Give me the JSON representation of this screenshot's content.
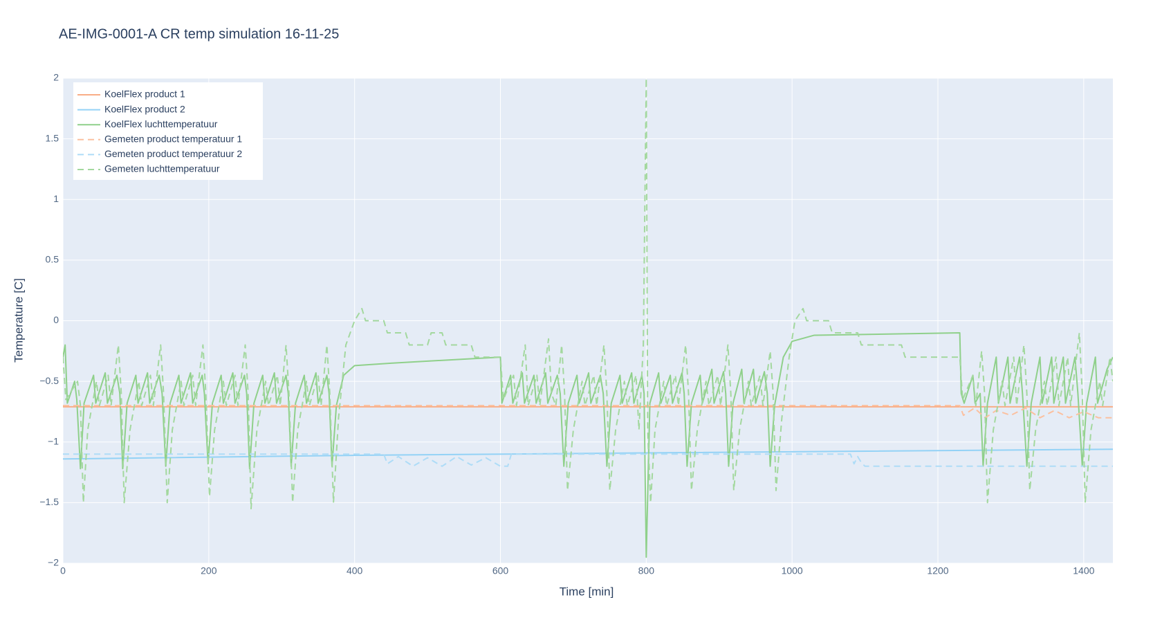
{
  "chart_data": {
    "type": "line",
    "title": "AE-IMG-0001-A CR temp simulation 16-11-25",
    "x_label": "Time [min]",
    "y_label": "Temperature [C]",
    "xlim": [
      0,
      1440
    ],
    "ylim": [
      -2,
      2
    ],
    "xticks": [
      0,
      200,
      400,
      600,
      800,
      1000,
      1200,
      1400
    ],
    "yticks": [
      {
        "value": -2,
        "label": "−2"
      },
      {
        "value": -1.5,
        "label": "−1.5"
      },
      {
        "value": -1,
        "label": "−1"
      },
      {
        "value": -0.5,
        "label": "−0.5"
      },
      0,
      0.5,
      1,
      1.5,
      2
    ],
    "grid": true,
    "legend": "top-left",
    "series": [
      {
        "name": "KoelFlex product 1",
        "color": "#f9ad86",
        "dash": "solid",
        "x": [
          0,
          400,
          800,
          1440
        ],
        "values": [
          -0.71,
          -0.71,
          -0.71,
          -0.71
        ]
      },
      {
        "name": "KoelFlex product 2",
        "color": "#93d2f6",
        "dash": "solid",
        "x": [
          0,
          400,
          800,
          1440
        ],
        "values": [
          -1.14,
          -1.11,
          -1.09,
          -1.06
        ]
      },
      {
        "name": "KoelFlex luchttemperatuur",
        "color": "#8fd08a",
        "dash": "solid",
        "x": [
          0,
          3,
          6,
          16,
          19,
          24,
          29,
          42,
          45,
          58,
          61,
          74,
          78,
          82,
          88,
          100,
          103,
          116,
          119,
          132,
          136,
          141,
          147,
          159,
          162,
          175,
          178,
          191,
          194,
          199,
          205,
          217,
          220,
          233,
          236,
          249,
          252,
          256,
          262,
          274,
          277,
          290,
          293,
          306,
          309,
          313,
          319,
          331,
          334,
          347,
          350,
          362,
          365,
          369,
          375,
          385,
          400,
          450,
          600,
          602,
          614,
          617,
          630,
          633,
          646,
          649,
          662,
          665,
          678,
          682,
          687,
          693,
          705,
          708,
          721,
          724,
          737,
          741,
          746,
          752,
          764,
          767,
          780,
          783,
          794,
          797,
          800,
          805,
          817,
          820,
          833,
          836,
          849,
          852,
          856,
          862,
          874,
          877,
          890,
          893,
          906,
          909,
          913,
          919,
          931,
          934,
          947,
          950,
          962,
          966,
          970,
          976,
          988,
          1000,
          1030,
          1230,
          1232,
          1236,
          1248,
          1251,
          1258,
          1262,
          1268,
          1280,
          1283,
          1296,
          1299,
          1312,
          1316,
          1322,
          1328,
          1340,
          1343,
          1356,
          1359,
          1372,
          1375,
          1388,
          1392,
          1398,
          1404,
          1416,
          1419,
          1432,
          1440
        ],
        "values": [
          -0.3,
          -0.2,
          -0.68,
          -0.5,
          -0.65,
          -1.22,
          -0.68,
          -0.45,
          -0.68,
          -0.43,
          -0.68,
          -0.45,
          -0.6,
          -1.22,
          -0.68,
          -0.45,
          -0.68,
          -0.43,
          -0.68,
          -0.45,
          -0.6,
          -1.2,
          -0.68,
          -0.45,
          -0.68,
          -0.43,
          -0.68,
          -0.45,
          -0.6,
          -1.18,
          -0.68,
          -0.45,
          -0.68,
          -0.43,
          -0.68,
          -0.45,
          -0.6,
          -1.22,
          -0.68,
          -0.45,
          -0.68,
          -0.43,
          -0.68,
          -0.45,
          -0.6,
          -1.2,
          -0.68,
          -0.45,
          -0.68,
          -0.43,
          -0.68,
          -0.45,
          -0.6,
          -1.2,
          -0.7,
          -0.45,
          -0.37,
          -0.35,
          -0.3,
          -0.68,
          -0.45,
          -0.68,
          -0.43,
          -0.68,
          -0.45,
          -0.68,
          -0.43,
          -0.68,
          -0.45,
          -0.6,
          -1.2,
          -0.68,
          -0.45,
          -0.68,
          -0.43,
          -0.68,
          -0.45,
          -0.6,
          -1.2,
          -0.68,
          -0.45,
          -0.68,
          -0.43,
          -0.68,
          -0.45,
          -0.6,
          -1.95,
          -0.68,
          -0.43,
          -0.68,
          -0.45,
          -0.68,
          -0.43,
          -0.6,
          -1.2,
          -0.68,
          -0.45,
          -0.68,
          -0.4,
          -0.68,
          -0.42,
          -0.6,
          -1.2,
          -0.68,
          -0.4,
          -0.68,
          -0.4,
          -0.68,
          -0.42,
          -0.6,
          -1.2,
          -0.7,
          -0.3,
          -0.17,
          -0.12,
          -0.1,
          -0.6,
          -0.68,
          -0.45,
          -0.68,
          -0.6,
          -1.2,
          -0.68,
          -0.3,
          -0.68,
          -0.3,
          -0.68,
          -0.3,
          -0.6,
          -1.2,
          -0.68,
          -0.3,
          -0.68,
          -0.3,
          -0.68,
          -0.3,
          -0.68,
          -0.3,
          -0.6,
          -1.2,
          -0.68,
          -0.3,
          -0.68,
          -0.4,
          -0.3
        ]
      },
      {
        "name": "Gemeten product temperatuur 1",
        "color": "#fbc09f",
        "dash": "dash",
        "x": [
          0,
          1230,
          1235,
          1250,
          1265,
          1280,
          1300,
          1320,
          1340,
          1360,
          1380,
          1400,
          1420,
          1440
        ],
        "values": [
          -0.7,
          -0.7,
          -0.78,
          -0.72,
          -0.8,
          -0.74,
          -0.78,
          -0.72,
          -0.8,
          -0.74,
          -0.8,
          -0.75,
          -0.8,
          -0.8
        ]
      },
      {
        "name": "Gemeten product temperatuur 2",
        "color": "#aedcf7",
        "dash": "dash",
        "x": [
          0,
          440,
          445,
          460,
          480,
          500,
          520,
          540,
          560,
          580,
          600,
          610,
          615,
          1080,
          1085,
          1090,
          1095,
          1100,
          1440
        ],
        "values": [
          -1.1,
          -1.1,
          -1.18,
          -1.12,
          -1.2,
          -1.13,
          -1.2,
          -1.12,
          -1.19,
          -1.13,
          -1.2,
          -1.2,
          -1.1,
          -1.1,
          -1.18,
          -1.12,
          -1.17,
          -1.2,
          -1.2
        ]
      },
      {
        "name": "Gemeten luchttemperatuur",
        "color": "#a3d89e",
        "dash": "dash",
        "x": [
          0,
          4,
          20,
          24,
          28,
          34,
          46,
          50,
          62,
          66,
          76,
          80,
          84,
          92,
          104,
          108,
          120,
          124,
          134,
          138,
          143,
          150,
          162,
          166,
          178,
          182,
          192,
          196,
          201,
          208,
          220,
          224,
          236,
          240,
          250,
          254,
          258,
          266,
          278,
          282,
          294,
          298,
          306,
          310,
          315,
          322,
          334,
          338,
          350,
          354,
          362,
          366,
          371,
          378,
          388,
          400,
          410,
          415,
          440,
          445,
          470,
          475,
          500,
          505,
          520,
          525,
          560,
          565,
          600,
          604,
          618,
          622,
          634,
          638,
          650,
          654,
          666,
          670,
          676,
          684,
          688,
          692,
          700,
          712,
          716,
          728,
          732,
          742,
          746,
          750,
          758,
          770,
          774,
          786,
          790,
          796,
          800,
          802,
          806,
          812,
          824,
          828,
          840,
          844,
          854,
          858,
          862,
          870,
          882,
          886,
          898,
          902,
          912,
          916,
          920,
          928,
          940,
          944,
          956,
          960,
          970,
          974,
          978,
          986,
          996,
          1004,
          1015,
          1020,
          1050,
          1055,
          1090,
          1095,
          1150,
          1155,
          1230,
          1234,
          1248,
          1252,
          1260,
          1264,
          1268,
          1276,
          1288,
          1292,
          1304,
          1308,
          1318,
          1322,
          1326,
          1334,
          1346,
          1350,
          1362,
          1366,
          1378,
          1382,
          1394,
          1398,
          1402,
          1410,
          1422,
          1426,
          1436,
          1440
        ],
        "values": [
          -0.3,
          -0.65,
          -0.5,
          -0.7,
          -1.5,
          -0.9,
          -0.5,
          -0.7,
          -0.45,
          -0.7,
          -0.2,
          -0.6,
          -1.5,
          -0.9,
          -0.5,
          -0.7,
          -0.45,
          -0.7,
          -0.2,
          -0.6,
          -1.5,
          -0.9,
          -0.5,
          -0.7,
          -0.45,
          -0.7,
          -0.2,
          -0.6,
          -1.45,
          -0.9,
          -0.5,
          -0.7,
          -0.45,
          -0.7,
          -0.2,
          -0.6,
          -1.55,
          -0.9,
          -0.5,
          -0.7,
          -0.45,
          -0.7,
          -0.2,
          -0.6,
          -1.5,
          -0.9,
          -0.5,
          -0.7,
          -0.45,
          -0.7,
          -0.2,
          -0.6,
          -1.5,
          -0.8,
          -0.2,
          0,
          0.1,
          0,
          0,
          -0.1,
          -0.1,
          -0.2,
          -0.2,
          -0.1,
          -0.1,
          -0.2,
          -0.2,
          -0.3,
          -0.3,
          -0.65,
          -0.45,
          -0.7,
          -0.2,
          -0.7,
          -0.45,
          -0.7,
          -0.15,
          -0.6,
          -0.7,
          -0.2,
          -0.6,
          -1.4,
          -0.9,
          -0.5,
          -0.7,
          -0.45,
          -0.7,
          -0.2,
          -0.6,
          -1.4,
          -0.9,
          -0.5,
          -0.7,
          -0.45,
          -0.9,
          -0.2,
          2,
          -0.9,
          -1.5,
          -0.9,
          -0.5,
          -0.7,
          -0.45,
          -0.7,
          -0.2,
          -0.6,
          -1.4,
          -0.9,
          -0.5,
          -0.7,
          -0.45,
          -0.7,
          -0.2,
          -0.6,
          -1.4,
          -0.9,
          -0.5,
          -0.7,
          -0.45,
          -0.7,
          -0.25,
          -0.6,
          -1.4,
          -0.8,
          -0.3,
          0,
          0.1,
          0,
          0,
          -0.1,
          -0.1,
          -0.2,
          -0.2,
          -0.3,
          -0.3,
          -0.65,
          -0.45,
          -0.7,
          -0.25,
          -0.6,
          -1.5,
          -0.9,
          -0.5,
          -0.7,
          -0.3,
          -0.7,
          -0.2,
          -0.6,
          -1.4,
          -0.9,
          -0.5,
          -0.7,
          -0.3,
          -0.7,
          -0.3,
          -0.7,
          -0.1,
          -0.6,
          -1.5,
          -0.9,
          -0.5,
          -0.7,
          -0.3,
          -0.5
        ]
      }
    ]
  }
}
